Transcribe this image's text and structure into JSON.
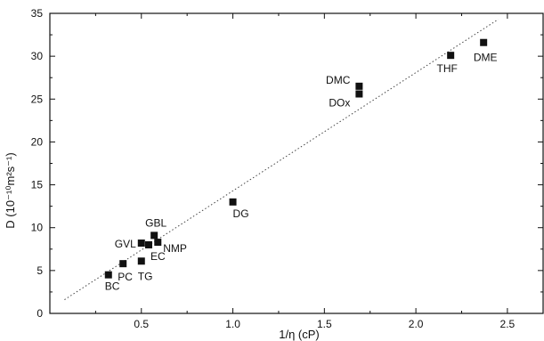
{
  "chart_data": {
    "type": "scatter",
    "xlabel": "1/η (cP)",
    "ylabel": "D (10⁻¹⁰m²s⁻¹)",
    "xlim": [
      0,
      2.7
    ],
    "ylim": [
      0,
      35
    ],
    "x_ticks": [
      0.5,
      1.0,
      1.5,
      2.0,
      2.5
    ],
    "y_ticks": [
      0,
      5,
      10,
      15,
      20,
      25,
      30,
      35
    ],
    "x_tick_labels": [
      "0.5",
      "1.0",
      "1.5",
      "2.0",
      "2.5"
    ],
    "y_tick_labels": [
      "0",
      "5",
      "10",
      "15",
      "20",
      "25",
      "30",
      "35"
    ],
    "points": [
      {
        "label": "BC",
        "x": 0.32,
        "y": 4.5
      },
      {
        "label": "PC",
        "x": 0.4,
        "y": 5.8
      },
      {
        "label": "TG",
        "x": 0.5,
        "y": 6.1
      },
      {
        "label": "GVL",
        "x": 0.5,
        "y": 8.2
      },
      {
        "label": "EC",
        "x": 0.54,
        "y": 8.0
      },
      {
        "label": "GBL",
        "x": 0.57,
        "y": 9.1
      },
      {
        "label": "NMP",
        "x": 0.59,
        "y": 8.3
      },
      {
        "label": "DG",
        "x": 1.0,
        "y": 13.0
      },
      {
        "label": "DMC",
        "x": 1.69,
        "y": 26.5
      },
      {
        "label": "DOx",
        "x": 1.69,
        "y": 25.6
      },
      {
        "label": "THF",
        "x": 2.19,
        "y": 30.1
      },
      {
        "label": "DME",
        "x": 2.37,
        "y": 31.6
      }
    ],
    "fit_line": {
      "style": "dotted",
      "x": [
        0.08,
        2.45
      ],
      "y": [
        1.6,
        34.3
      ]
    },
    "grid": false,
    "legend": "none"
  }
}
